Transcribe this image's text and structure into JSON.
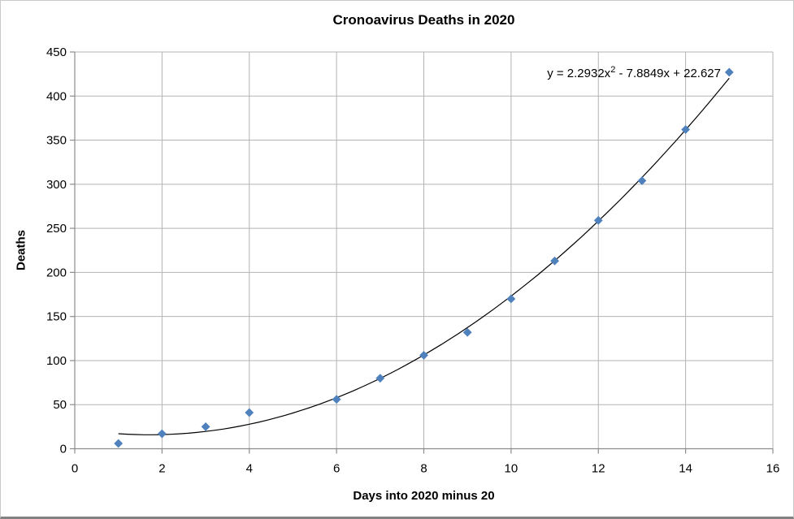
{
  "chart_data": {
    "type": "scatter",
    "title": "Cronoavirus Deaths in 2020",
    "xlabel": "Days into 2020 minus 20",
    "ylabel": "Deaths",
    "x": [
      1,
      2,
      3,
      4,
      6,
      7,
      8,
      9,
      10,
      11,
      12,
      13,
      14,
      15
    ],
    "y": [
      6,
      17,
      25,
      41,
      56,
      80,
      106,
      132,
      170,
      213,
      259,
      304,
      362,
      427
    ],
    "xlim": [
      0,
      16
    ],
    "ylim": [
      0,
      450
    ],
    "x_ticks": [
      0,
      2,
      4,
      6,
      8,
      10,
      12,
      14,
      16
    ],
    "y_ticks": [
      0,
      50,
      100,
      150,
      200,
      250,
      300,
      350,
      400,
      450
    ],
    "grid": true,
    "legend": "none",
    "marker": "diamond",
    "marker_color": "#4f81bd",
    "gridline_color": "#b3b3b3",
    "axis_color": "#8c8c8c",
    "trendline": {
      "type": "polynomial",
      "degree": 2,
      "a": 2.2932,
      "b": -7.8849,
      "c": 22.627,
      "color": "#000000",
      "x_start": 1,
      "x_end": 15
    },
    "equation": {
      "prefix": "y = 2.2932x",
      "sup": "2",
      "suffix": " - 7.8849x + 22.627"
    }
  }
}
